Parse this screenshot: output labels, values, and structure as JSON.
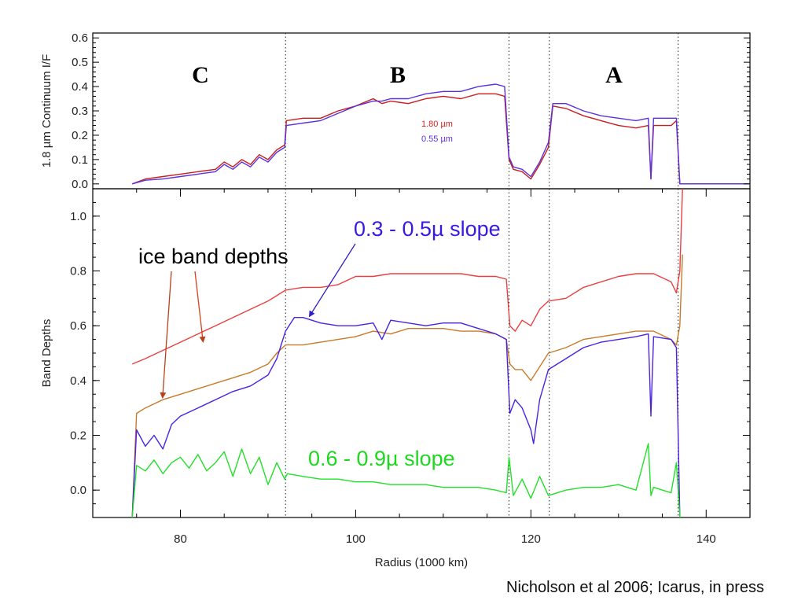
{
  "citation": "Nicholson et al 2006; Icarus, in press",
  "colors": {
    "continuum_180": "#c81e1e",
    "continuum_055": "#5a32dc",
    "ice_red": "#e84040",
    "ice_orange": "#c87a2a",
    "slope_blue": "#4a22e0",
    "slope_green": "#22e02a"
  },
  "chart_data": [
    {
      "type": "line",
      "title": "",
      "xlabel": "",
      "ylabel": "1.8 µm Continuum I/F",
      "xlim": [
        70,
        145
      ],
      "ylim": [
        -0.02,
        0.62
      ],
      "yticks": [
        "0.0",
        "0.1",
        "0.2",
        "0.3",
        "0.4",
        "0.5",
        "0.6"
      ],
      "ring_labels": [
        {
          "text": "C",
          "x": 80
        },
        {
          "text": "B",
          "x": 105
        },
        {
          "text": "A",
          "x": 131
        }
      ],
      "boundaries": [
        92,
        117.5,
        122.1,
        136.8
      ],
      "series": [
        {
          "name": "1.80 µm",
          "color_key": "continuum_180",
          "x": [
            74.5,
            76,
            78,
            80,
            82,
            84,
            85,
            86,
            87,
            88,
            89,
            90,
            91,
            91.9,
            92.1,
            94,
            96,
            98,
            100,
            102,
            103,
            104,
            106,
            108,
            110,
            112,
            114,
            116,
            117,
            117.5,
            118,
            119,
            120,
            121,
            122,
            122.5,
            124,
            126,
            128,
            130,
            132,
            133.4,
            133.7,
            134,
            136,
            136.6,
            137,
            140,
            145
          ],
          "y": [
            0.0,
            0.02,
            0.03,
            0.04,
            0.05,
            0.06,
            0.09,
            0.07,
            0.1,
            0.08,
            0.12,
            0.1,
            0.14,
            0.16,
            0.26,
            0.27,
            0.27,
            0.3,
            0.32,
            0.35,
            0.33,
            0.34,
            0.33,
            0.35,
            0.36,
            0.35,
            0.37,
            0.37,
            0.36,
            0.1,
            0.06,
            0.05,
            0.02,
            0.08,
            0.15,
            0.32,
            0.31,
            0.28,
            0.26,
            0.24,
            0.23,
            0.24,
            0.02,
            0.24,
            0.24,
            0.26,
            0.0,
            0.0,
            0.0
          ]
        },
        {
          "name": "0.55 µm",
          "color_key": "continuum_055",
          "x": [
            74.5,
            76,
            78,
            80,
            82,
            84,
            85,
            86,
            87,
            88,
            89,
            90,
            91,
            91.9,
            92.1,
            94,
            96,
            98,
            100,
            102,
            103,
            104,
            106,
            108,
            110,
            112,
            114,
            116,
            117,
            117.5,
            118,
            119,
            120,
            121,
            122,
            122.5,
            124,
            126,
            128,
            130,
            132,
            133.4,
            133.7,
            134,
            136,
            136.6,
            137,
            140,
            145
          ],
          "y": [
            0.0,
            0.015,
            0.02,
            0.03,
            0.04,
            0.05,
            0.08,
            0.06,
            0.09,
            0.07,
            0.11,
            0.09,
            0.13,
            0.15,
            0.24,
            0.25,
            0.26,
            0.29,
            0.32,
            0.34,
            0.34,
            0.35,
            0.35,
            0.37,
            0.38,
            0.38,
            0.4,
            0.41,
            0.4,
            0.11,
            0.07,
            0.06,
            0.03,
            0.09,
            0.17,
            0.33,
            0.33,
            0.3,
            0.28,
            0.27,
            0.26,
            0.27,
            0.02,
            0.27,
            0.27,
            0.27,
            0.0,
            0.0,
            0.0
          ]
        }
      ]
    },
    {
      "type": "line",
      "title": "",
      "xlabel": "Radius (1000 km)",
      "ylabel": "Band Depths",
      "xlim": [
        70,
        145
      ],
      "ylim": [
        -0.1,
        1.1
      ],
      "xticks": [
        "80",
        "100",
        "120",
        "140"
      ],
      "yticks": [
        "0.0",
        "0.2",
        "0.4",
        "0.6",
        "0.8",
        "1.0"
      ],
      "boundaries": [
        92,
        117.5,
        122.1,
        136.8
      ],
      "annotations": [
        {
          "text": "ice band depths",
          "x": 74,
          "y": 0.86,
          "color": "#000000"
        },
        {
          "text": "0.3 - 0.5µ slope",
          "x": 97,
          "y": 0.96,
          "color": "#3a1ae0"
        },
        {
          "text": "0.6 - 0.9µ slope",
          "x": 88.5,
          "y": 0.1,
          "color": "#1ed81e"
        }
      ],
      "series": [
        {
          "color_key": "ice_red",
          "x": [
            74.5,
            76,
            78,
            80,
            82,
            84,
            86,
            88,
            90,
            91,
            92,
            94,
            96,
            98,
            100,
            102,
            104,
            106,
            108,
            110,
            112,
            114,
            116,
            117.2,
            117.6,
            118.2,
            119,
            120,
            121,
            122,
            124,
            126,
            128,
            130,
            132,
            134,
            136,
            136.6,
            137,
            137.3
          ],
          "y": [
            0.46,
            0.48,
            0.51,
            0.54,
            0.57,
            0.6,
            0.63,
            0.66,
            0.69,
            0.71,
            0.73,
            0.74,
            0.74,
            0.75,
            0.78,
            0.78,
            0.79,
            0.79,
            0.79,
            0.79,
            0.79,
            0.78,
            0.78,
            0.77,
            0.6,
            0.58,
            0.62,
            0.6,
            0.66,
            0.69,
            0.7,
            0.74,
            0.76,
            0.78,
            0.79,
            0.79,
            0.76,
            0.72,
            0.8,
            1.1
          ]
        },
        {
          "color_key": "ice_orange",
          "x": [
            74.5,
            75,
            76,
            78,
            80,
            82,
            84,
            86,
            88,
            90,
            91,
            92,
            94,
            96,
            98,
            100,
            102,
            104,
            106,
            108,
            110,
            112,
            114,
            116,
            117.2,
            117.6,
            118.2,
            119,
            120,
            121,
            122,
            124,
            126,
            128,
            130,
            132,
            134,
            136,
            136.6,
            137,
            137.3
          ],
          "y": [
            -0.1,
            0.28,
            0.3,
            0.33,
            0.35,
            0.37,
            0.39,
            0.41,
            0.43,
            0.46,
            0.5,
            0.53,
            0.53,
            0.54,
            0.55,
            0.56,
            0.58,
            0.57,
            0.59,
            0.59,
            0.59,
            0.58,
            0.58,
            0.57,
            0.55,
            0.46,
            0.44,
            0.44,
            0.4,
            0.45,
            0.5,
            0.52,
            0.55,
            0.56,
            0.57,
            0.58,
            0.58,
            0.55,
            0.53,
            0.6,
            0.86
          ]
        },
        {
          "color_key": "slope_blue",
          "x": [
            74.5,
            75,
            76,
            77,
            78,
            79,
            80,
            82,
            84,
            86,
            88,
            90,
            91,
            92,
            93,
            94,
            96,
            98,
            100,
            102,
            103,
            104,
            106,
            108,
            110,
            112,
            114,
            116,
            117.2,
            117.6,
            118.2,
            119,
            120,
            120.3,
            121,
            122,
            124,
            126,
            128,
            130,
            132,
            133.4,
            133.7,
            134,
            136,
            136.6,
            137
          ],
          "y": [
            -0.1,
            0.22,
            0.16,
            0.2,
            0.15,
            0.24,
            0.27,
            0.3,
            0.33,
            0.36,
            0.38,
            0.42,
            0.48,
            0.58,
            0.63,
            0.63,
            0.61,
            0.6,
            0.6,
            0.61,
            0.55,
            0.62,
            0.61,
            0.6,
            0.61,
            0.61,
            0.59,
            0.57,
            0.55,
            0.28,
            0.33,
            0.3,
            0.22,
            0.17,
            0.33,
            0.44,
            0.48,
            0.52,
            0.54,
            0.55,
            0.56,
            0.57,
            0.27,
            0.56,
            0.55,
            0.52,
            -0.1
          ]
        },
        {
          "color_key": "slope_green",
          "x": [
            74.5,
            75,
            76,
            77,
            78,
            79,
            80,
            81,
            82,
            83,
            84,
            85,
            86,
            87,
            88,
            89,
            90,
            91,
            91.9,
            92.2,
            94,
            96,
            98,
            100,
            102,
            104,
            106,
            108,
            110,
            112,
            114,
            116,
            117.2,
            117.5,
            118,
            119,
            120,
            121,
            122,
            124,
            126,
            128,
            130,
            132,
            133.4,
            133.7,
            134,
            136,
            136.6,
            137
          ],
          "y": [
            -0.1,
            0.09,
            0.07,
            0.11,
            0.06,
            0.1,
            0.12,
            0.08,
            0.13,
            0.07,
            0.1,
            0.14,
            0.05,
            0.15,
            0.06,
            0.12,
            0.02,
            0.1,
            0.04,
            0.06,
            0.05,
            0.04,
            0.04,
            0.03,
            0.03,
            0.02,
            0.02,
            0.02,
            0.01,
            0.01,
            0.01,
            0.0,
            -0.01,
            0.12,
            -0.02,
            0.04,
            -0.03,
            0.05,
            -0.02,
            0.0,
            0.01,
            0.01,
            0.02,
            0.0,
            0.17,
            -0.02,
            0.01,
            -0.01,
            0.1,
            -0.1
          ]
        }
      ]
    }
  ]
}
